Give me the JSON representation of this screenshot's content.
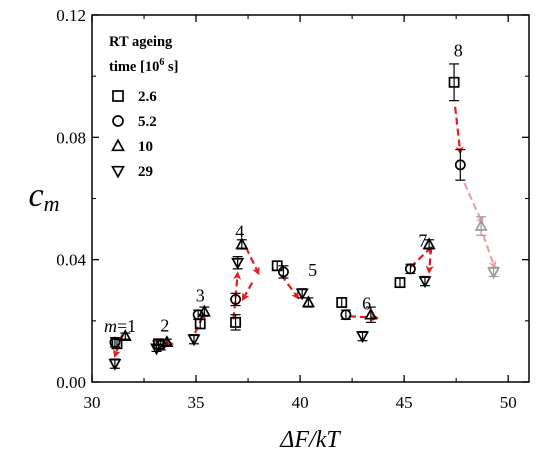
{
  "chart_data": {
    "type": "scatter",
    "xlabel": "ΔF/kT",
    "ylabel": "c_m",
    "xlim": [
      30,
      51
    ],
    "ylim": [
      0,
      0.12
    ],
    "x_ticks": [
      "30",
      "35",
      "40",
      "45",
      "50"
    ],
    "y_ticks": [
      "0.00",
      "0.04",
      "0.08",
      "0.12"
    ],
    "legend": {
      "title_line1": "RT ageing",
      "title_line2_pre": "time [10",
      "title_line2_sup": "6",
      "title_line2_post": " s]",
      "placement": "top-left"
    },
    "series": [
      {
        "name": "2.6",
        "marker": "square",
        "x": [
          31.2,
          33.2,
          35.2,
          36.9,
          38.9,
          42.0,
          44.8,
          47.4
        ],
        "y": [
          0.0125,
          0.0125,
          0.019,
          0.0195,
          0.038,
          0.026,
          0.0325,
          0.098
        ],
        "err": [
          0.0015,
          0.0015,
          0.0015,
          0.0025,
          0.0015,
          0.0015,
          0.0015,
          0.006
        ],
        "faded": [
          false,
          false,
          false,
          false,
          false,
          false,
          false,
          false
        ]
      },
      {
        "name": "5.2",
        "marker": "circle",
        "x": [
          31.1,
          33.3,
          35.1,
          36.9,
          39.2,
          42.2,
          45.3,
          47.7
        ],
        "y": [
          0.013,
          0.012,
          0.022,
          0.027,
          0.036,
          0.022,
          0.037,
          0.071
        ],
        "err": [
          0.0015,
          0.0015,
          0.0015,
          0.002,
          0.002,
          0.0015,
          0.0015,
          0.005
        ],
        "faded": [
          false,
          false,
          false,
          false,
          false,
          false,
          false,
          false
        ]
      },
      {
        "name": "10",
        "marker": "triangle-up",
        "x": [
          31.6,
          33.6,
          35.4,
          37.2,
          40.4,
          43.4,
          46.2,
          48.7
        ],
        "y": [
          0.015,
          0.013,
          0.023,
          0.045,
          0.026,
          0.022,
          0.045,
          0.051
        ],
        "err": [
          0.001,
          0.001,
          0.0015,
          0.0015,
          0.0015,
          0.0025,
          0.0015,
          0.003
        ],
        "faded": [
          false,
          false,
          false,
          false,
          false,
          false,
          false,
          true
        ]
      },
      {
        "name": "29",
        "marker": "triangle-down",
        "x": [
          31.1,
          33.1,
          34.9,
          37.0,
          40.1,
          43.0,
          46.0,
          49.3
        ],
        "y": [
          0.006,
          0.011,
          0.014,
          0.039,
          0.029,
          0.015,
          0.033,
          0.036
        ],
        "err": [
          0.0015,
          0.001,
          0.0015,
          0.002,
          0.0015,
          0.0015,
          0.0015,
          0.0015
        ],
        "faded": [
          false,
          false,
          false,
          false,
          false,
          false,
          false,
          true
        ]
      }
    ],
    "peak_labels": [
      "m=1",
      "2",
      "3",
      "4",
      "5",
      "6",
      "7",
      "8"
    ],
    "peak_label_positions": [
      [
        31.35,
        0.0163
      ],
      [
        33.5,
        0.0165
      ],
      [
        35.2,
        0.0263
      ],
      [
        37.1,
        0.0473
      ],
      [
        40.6,
        0.0347
      ],
      [
        43.2,
        0.0237
      ],
      [
        45.9,
        0.0443
      ],
      [
        47.6,
        0.1065
      ]
    ],
    "arrow_color": "#e02020",
    "arrows": [
      {
        "from": [
          31.45,
          0.0155
        ],
        "to": [
          31.1,
          0.0085
        ],
        "faded": false
      },
      {
        "from": [
          32.9,
          0.0135
        ],
        "to": [
          33.85,
          0.0125
        ],
        "faded": false
      },
      {
        "from": [
          34.95,
          0.016
        ],
        "to": [
          35.4,
          0.0225
        ],
        "faded": false
      },
      {
        "from": [
          36.8,
          0.0205
        ],
        "to": [
          37.0,
          0.0355
        ],
        "faded": false
      },
      {
        "from": [
          37.4,
          0.044
        ],
        "to": [
          38.0,
          0.0355
        ],
        "faded": false
      },
      {
        "from": [
          37.7,
          0.0325
        ],
        "to": [
          37.25,
          0.027
        ],
        "faded": false
      },
      {
        "from": [
          39.1,
          0.035
        ],
        "to": [
          39.9,
          0.0275
        ],
        "faded": false
      },
      {
        "from": [
          42.35,
          0.0215
        ],
        "to": [
          43.7,
          0.021
        ],
        "faded": false
      },
      {
        "from": [
          45.3,
          0.0375
        ],
        "to": [
          46.3,
          0.044
        ],
        "faded": false
      },
      {
        "from": [
          46.3,
          0.044
        ],
        "to": [
          46.2,
          0.036
        ],
        "faded": false
      },
      {
        "from": [
          47.45,
          0.09
        ],
        "to": [
          47.7,
          0.075
        ],
        "faded": false
      },
      {
        "from": [
          47.9,
          0.065
        ],
        "to": [
          48.75,
          0.052
        ],
        "faded": true
      },
      {
        "from": [
          48.8,
          0.048
        ],
        "to": [
          49.35,
          0.0375
        ],
        "faded": true
      }
    ],
    "grid": false
  }
}
